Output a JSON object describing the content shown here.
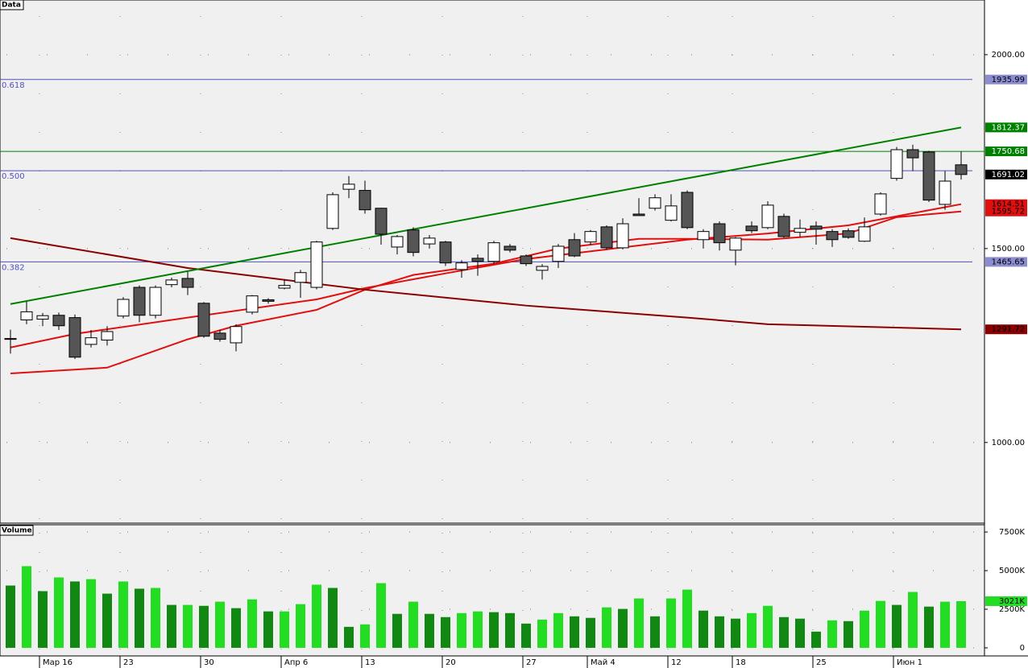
{
  "chart_data": {
    "type": "candlestick",
    "panel_label": "Data",
    "categories": [
      null,
      null,
      "Мар 16",
      null,
      null,
      null,
      null,
      "23",
      null,
      null,
      null,
      null,
      "30",
      null,
      null,
      null,
      null,
      "Апр 6",
      null,
      null,
      null,
      null,
      "13",
      null,
      null,
      null,
      null,
      "20",
      null,
      null,
      null,
      null,
      "27",
      null,
      null,
      null,
      "Май 4",
      null,
      null,
      null,
      null,
      "12",
      null,
      null,
      null,
      "18",
      null,
      null,
      null,
      null,
      "25",
      null,
      null,
      null,
      null,
      "Июн 1",
      null,
      null,
      null,
      null
    ],
    "open": [
      1267,
      1316,
      1318,
      1328,
      1322,
      1253,
      1264,
      1326,
      1400,
      1328,
      1407,
      1423,
      1359,
      1282,
      1257,
      1336,
      1368,
      1398,
      1413,
      1400,
      1552,
      1653,
      1650,
      1604,
      1504,
      1548,
      1512,
      1517,
      1446,
      1475,
      1467,
      1506,
      1481,
      1444,
      1467,
      1523,
      1517,
      1556,
      1502,
      1589,
      1604,
      1573,
      1645,
      1523,
      1564,
      1496,
      1558,
      1554,
      1583,
      1542,
      1558,
      1544,
      1546,
      1519,
      1589,
      1681,
      1755,
      1749,
      1614,
      1716
    ],
    "high": [
      1291,
      1363,
      1334,
      1335,
      1330,
      1290,
      1300,
      1375,
      1405,
      1405,
      1425,
      1440,
      1362,
      1290,
      1305,
      1380,
      1372,
      1420,
      1445,
      1520,
      1645,
      1687,
      1675,
      1605,
      1535,
      1555,
      1535,
      1520,
      1470,
      1485,
      1520,
      1512,
      1485,
      1460,
      1512,
      1540,
      1548,
      1560,
      1578,
      1630,
      1640,
      1640,
      1650,
      1550,
      1570,
      1530,
      1570,
      1622,
      1590,
      1575,
      1570,
      1550,
      1552,
      1580,
      1645,
      1762,
      1768,
      1752,
      1700,
      1750
    ],
    "low": [
      1229,
      1305,
      1300,
      1290,
      1215,
      1245,
      1250,
      1320,
      1310,
      1320,
      1400,
      1380,
      1270,
      1260,
      1235,
      1330,
      1358,
      1395,
      1373,
      1395,
      1548,
      1630,
      1590,
      1510,
      1485,
      1480,
      1500,
      1455,
      1425,
      1430,
      1460,
      1490,
      1455,
      1420,
      1450,
      1478,
      1510,
      1498,
      1498,
      1585,
      1598,
      1570,
      1550,
      1500,
      1495,
      1457,
      1540,
      1550,
      1528,
      1530,
      1510,
      1504,
      1525,
      1517,
      1585,
      1675,
      1700,
      1620,
      1600,
      1678
    ],
    "close": [
      1268,
      1337,
      1327,
      1301,
      1220,
      1270,
      1286,
      1369,
      1328,
      1400,
      1419,
      1400,
      1274,
      1266,
      1299,
      1378,
      1364,
      1405,
      1438,
      1517,
      1639,
      1666,
      1600,
      1537,
      1531,
      1490,
      1527,
      1463,
      1463,
      1467,
      1515,
      1496,
      1461,
      1454,
      1506,
      1481,
      1544,
      1502,
      1564,
      1585,
      1631,
      1610,
      1554,
      1544,
      1515,
      1527,
      1546,
      1612,
      1531,
      1552,
      1550,
      1523,
      1529,
      1556,
      1641,
      1755,
      1734,
      1625,
      1674,
      1691.02
    ],
    "up_color": "#ffffff",
    "down_color": "#555555",
    "ylim": [
      792,
      2141
    ],
    "yticks": [
      {
        "value": 1000,
        "label": "1000.00"
      },
      {
        "value": 1500,
        "label": "1500.00"
      },
      {
        "value": 2000,
        "label": "2000.00"
      }
    ],
    "lines": [
      {
        "color": "#e01010",
        "x": [
          0,
          4,
          11,
          19,
          22,
          27,
          32,
          37,
          42,
          47,
          52,
          59
        ],
        "values": [
          1245,
          1280,
          1322,
          1369,
          1398,
          1436,
          1473,
          1498,
          1523,
          1539,
          1560,
          1614.51
        ]
      },
      {
        "color": "#e01010",
        "x": [
          0,
          6,
          11,
          14,
          19,
          22,
          25,
          30,
          34,
          39,
          42,
          47,
          52,
          55,
          59
        ],
        "values": [
          1178,
          1193,
          1266,
          1301,
          1342,
          1394,
          1432,
          1461,
          1500,
          1525,
          1525,
          1523,
          1539,
          1581,
          1595.72
        ]
      },
      {
        "color": "#8b0000",
        "x": [
          0,
          11,
          22,
          32,
          42,
          47,
          59
        ],
        "values": [
          1527,
          1450,
          1394,
          1353,
          1322,
          1305,
          1291.72
        ]
      }
    ],
    "trendline": {
      "color": "#008000",
      "x": [
        0,
        59
      ],
      "values": [
        1357,
        1812.37
      ]
    },
    "hlines": [
      {
        "color": "#008000",
        "value": 1750.68
      }
    ],
    "fib": {
      "color": "#5050c0",
      "levels": [
        {
          "label": "0.618",
          "value": 1935.99
        },
        {
          "label": "0.500",
          "value": 1700.82
        },
        {
          "label": "0.382",
          "value": 1465.65
        }
      ]
    },
    "volume": {
      "type": "bar",
      "panel_label": "Volume",
      "values": [
        4035,
        5290,
        3670,
        4560,
        4300,
        4450,
        3510,
        4300,
        3830,
        3880,
        2780,
        2780,
        2720,
        2990,
        2570,
        3140,
        2360,
        2360,
        2830,
        4090,
        3880,
        1360,
        1520,
        4190,
        2200,
        2990,
        2200,
        1990,
        2250,
        2360,
        2310,
        2250,
        1570,
        1830,
        2250,
        2040,
        1940,
        2620,
        2520,
        3200,
        2040,
        3200,
        3770,
        2410,
        2040,
        1890,
        2250,
        2720,
        1990,
        1890,
        1050,
        1780,
        1730,
        2410,
        3040,
        2780,
        3620,
        2670,
        2990,
        3021
      ],
      "up_color": "#22dd22",
      "down_color": "#118811",
      "ylim": [
        -524,
        7972
      ],
      "yticks": [
        0,
        {
          "value": 2500,
          "label": "2500K"
        },
        {
          "value": 5000,
          "label": "5000K"
        },
        {
          "value": 7500,
          "label": "7500K"
        }
      ],
      "current_label": "3021K"
    }
  }
}
